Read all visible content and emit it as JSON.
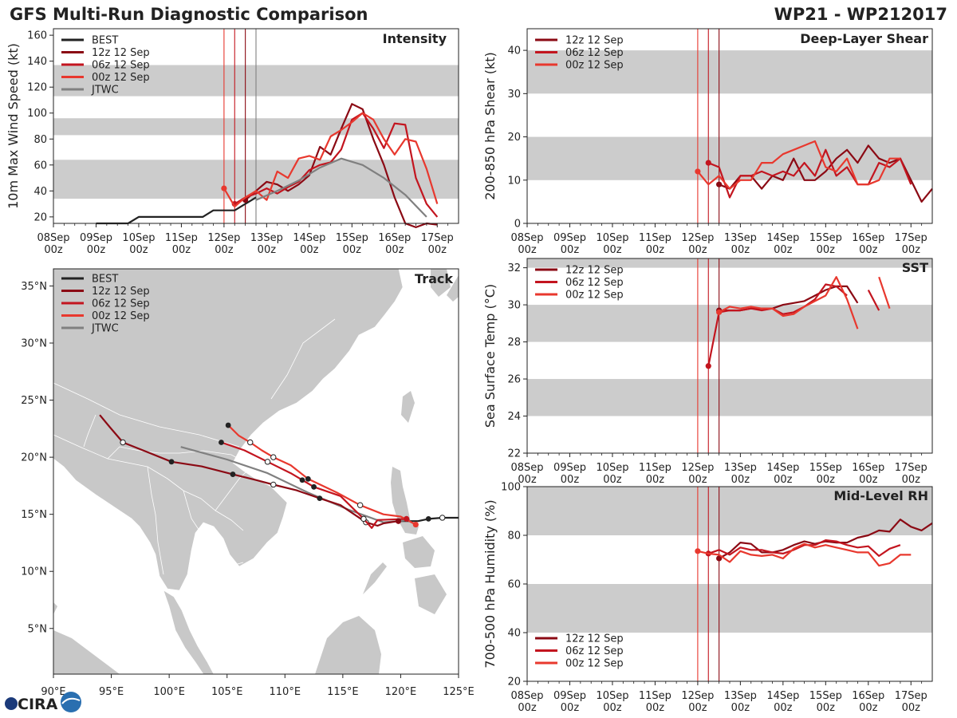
{
  "header": {
    "title": "GFS Multi-Run Diagnostic Comparison",
    "storm_id": "WP21 - WP212017"
  },
  "logo_text": "CIRA",
  "colors": {
    "best": "#222222",
    "run12": "#8b0a14",
    "run06": "#c3151f",
    "run00": "#e8382e",
    "jtwc": "#808080",
    "band": "#cccccc",
    "land": "#c8c8c8"
  },
  "time_ticks": [
    "08Sep 00z",
    "09Sep 00z",
    "10Sep 00z",
    "11Sep 00z",
    "12Sep 00z",
    "13Sep 00z",
    "14Sep 00z",
    "15Sep 00z",
    "16Sep 00z",
    "17Sep 00z"
  ],
  "chart_data": [
    {
      "id": "intensity",
      "type": "line",
      "title": "Intensity",
      "ylabel": "10m Max Wind Speed (kt)",
      "xlim": [
        0,
        228
      ],
      "ylim": [
        15,
        165
      ],
      "yticks": [
        "20",
        "40",
        "60",
        "80",
        "100",
        "120",
        "140",
        "160"
      ],
      "bands": [
        [
          34,
          64
        ],
        [
          83,
          96
        ],
        [
          113,
          137
        ]
      ],
      "vlines": [
        {
          "x": 96,
          "series": "run00"
        },
        {
          "x": 102,
          "series": "run06"
        },
        {
          "x": 108,
          "series": "run12"
        },
        {
          "x": 114,
          "series": "jtwc"
        }
      ],
      "legend": [
        "BEST",
        "12z 12 Sep",
        "06z 12 Sep",
        "00z 12 Sep",
        "JTWC"
      ],
      "legend_series": [
        "best",
        "run12",
        "run06",
        "run00",
        "jtwc"
      ],
      "legend_pos": "top-left",
      "series": [
        {
          "name": "BEST",
          "key": "best",
          "x": [
            24,
            30,
            36,
            42,
            48,
            54,
            60,
            66,
            72,
            78,
            84,
            90,
            96,
            102,
            108,
            114
          ],
          "y": [
            15,
            15,
            15,
            15,
            20,
            20,
            20,
            20,
            20,
            20,
            20,
            25,
            25,
            25,
            30,
            35
          ]
        },
        {
          "name": "12z 12 Sep",
          "key": "run12",
          "dot_first": true,
          "x": [
            108,
            114,
            120,
            126,
            132,
            138,
            144,
            150,
            156,
            162,
            168,
            174,
            180,
            186,
            192,
            198,
            204,
            210,
            216
          ],
          "y": [
            33,
            40,
            47,
            45,
            40,
            45,
            52,
            74,
            68,
            88,
            107,
            103,
            80,
            60,
            35,
            15,
            12,
            15,
            14
          ]
        },
        {
          "name": "06z 12 Sep",
          "key": "run06",
          "dot_first": true,
          "x": [
            102,
            108,
            114,
            120,
            126,
            132,
            138,
            144,
            150,
            156,
            162,
            168,
            174,
            180,
            186,
            192,
            198,
            204,
            210,
            216
          ],
          "y": [
            30,
            35,
            38,
            42,
            38,
            43,
            47,
            56,
            60,
            62,
            72,
            95,
            100,
            88,
            73,
            92,
            91,
            50,
            30,
            20
          ]
        },
        {
          "name": "00z 12 Sep",
          "key": "run00",
          "dot_first": true,
          "x": [
            96,
            102,
            108,
            114,
            120,
            126,
            132,
            138,
            144,
            150,
            156,
            162,
            168,
            174,
            180,
            186,
            192,
            198,
            204,
            210,
            216
          ],
          "y": [
            42,
            28,
            35,
            40,
            33,
            55,
            50,
            65,
            67,
            64,
            82,
            87,
            93,
            100,
            95,
            80,
            68,
            80,
            78,
            57,
            30
          ]
        },
        {
          "name": "JTWC",
          "key": "jtwc",
          "x": [
            114,
            126,
            138,
            150,
            162,
            174,
            186,
            198,
            210
          ],
          "y": [
            33,
            40,
            48,
            58,
            65,
            60,
            50,
            37,
            20
          ]
        }
      ]
    },
    {
      "id": "shear",
      "type": "line",
      "title": "Deep-Layer Shear",
      "ylabel": "200-850 hPa Shear (kt)",
      "xlim": [
        0,
        228
      ],
      "ylim": [
        0,
        45
      ],
      "yticks": [
        "0",
        "10",
        "20",
        "30",
        "40"
      ],
      "bands": [
        [
          10,
          20
        ],
        [
          30,
          40
        ]
      ],
      "vlines": [
        {
          "x": 96,
          "series": "run00"
        },
        {
          "x": 102,
          "series": "run06"
        },
        {
          "x": 108,
          "series": "run12"
        }
      ],
      "legend": [
        "12z 12 Sep",
        "06z 12 Sep",
        "00z 12 Sep"
      ],
      "legend_series": [
        "run12",
        "run06",
        "run00"
      ],
      "legend_pos": "top-left",
      "series": [
        {
          "name": "12z 12 Sep",
          "key": "run12",
          "dot_first": true,
          "x": [
            108,
            114,
            120,
            126,
            132,
            138,
            144,
            150,
            156,
            162,
            168,
            174,
            180,
            186,
            192,
            198,
            204,
            210,
            216,
            222,
            228
          ],
          "y": [
            9,
            8,
            11,
            11,
            8,
            11,
            10,
            15,
            10,
            10,
            12,
            15,
            17,
            14,
            18,
            15,
            14,
            15,
            10,
            5,
            8
          ]
        },
        {
          "name": "06z 12 Sep",
          "key": "run06",
          "dot_first": true,
          "x": [
            102,
            108,
            114,
            120,
            126,
            132,
            138,
            144,
            150,
            156,
            162,
            168,
            174,
            180,
            186,
            192,
            198,
            204,
            210,
            216
          ],
          "y": [
            14,
            13,
            6,
            11,
            11,
            12,
            11,
            12,
            11,
            14,
            11,
            17,
            11,
            13,
            9,
            9,
            14,
            13,
            15,
            9
          ]
        },
        {
          "name": "00z 12 Sep",
          "key": "run00",
          "dot_first": true,
          "x": [
            96,
            102,
            108,
            114,
            120,
            126,
            132,
            138,
            144,
            150,
            156,
            162,
            168,
            174,
            180,
            186,
            192,
            198,
            204,
            210
          ],
          "y": [
            12,
            9,
            11,
            8,
            10,
            10,
            14,
            14,
            16,
            17,
            18,
            19,
            13,
            12,
            15,
            9,
            9,
            10,
            15,
            15
          ]
        }
      ]
    },
    {
      "id": "sst",
      "type": "line",
      "title": "SST",
      "ylabel": "Sea Surface Temp (°C)",
      "xlim": [
        0,
        228
      ],
      "ylim": [
        22,
        32.5
      ],
      "yticks": [
        "22",
        "24",
        "26",
        "28",
        "30",
        "32"
      ],
      "bands": [
        [
          24,
          26
        ],
        [
          28,
          30
        ],
        [
          32,
          32.5
        ]
      ],
      "vlines": [
        {
          "x": 96,
          "series": "run00"
        },
        {
          "x": 102,
          "series": "run06"
        },
        {
          "x": 108,
          "series": "run12"
        }
      ],
      "legend": [
        "12z 12 Sep",
        "06z 12 Sep",
        "00z 12 Sep"
      ],
      "legend_series": [
        "run12",
        "run06",
        "run00"
      ],
      "legend_pos": "top-left",
      "series": [
        {
          "name": "12z 12 Sep",
          "key": "run12",
          "dot_first": true,
          "x": [
            108,
            114,
            120,
            126,
            132,
            138,
            144,
            150,
            156,
            162,
            168,
            174,
            180,
            186
          ],
          "y": [
            29.7,
            29.7,
            29.7,
            29.8,
            29.8,
            29.8,
            30,
            30.1,
            30.2,
            30.5,
            30.8,
            31,
            31,
            30.1
          ]
        },
        {
          "name": "06z 12 Sep",
          "key": "run06",
          "dot_first": true,
          "x": [
            102,
            108,
            114,
            120,
            126,
            132,
            138,
            144,
            150,
            156,
            162,
            168,
            174,
            180
          ],
          "y": [
            26.7,
            29.6,
            29.7,
            29.7,
            29.8,
            29.7,
            29.8,
            29.5,
            29.6,
            29.9,
            30.3,
            31.1,
            31,
            30.5
          ]
        },
        {
          "name": "06z tail",
          "key": "run06",
          "x": [
            192,
            198
          ],
          "y": [
            30.8,
            29.7
          ]
        },
        {
          "name": "00z 12 Sep",
          "key": "run00",
          "dot_first": true,
          "x": [
            108,
            114,
            120,
            126,
            132,
            138,
            144,
            150,
            156,
            162,
            168,
            174,
            180,
            186
          ],
          "y": [
            29.6,
            29.9,
            29.8,
            29.9,
            29.8,
            29.8,
            29.4,
            29.5,
            29.9,
            30.2,
            30.5,
            31.5,
            30.3,
            28.7
          ]
        },
        {
          "name": "00z tail",
          "key": "run00",
          "x": [
            198,
            204
          ],
          "y": [
            31.5,
            29.8
          ]
        }
      ]
    },
    {
      "id": "rh",
      "type": "line",
      "title": "Mid-Level RH",
      "ylabel": "700-500 hPa Humidity (%)",
      "xlim": [
        0,
        228
      ],
      "ylim": [
        20,
        100
      ],
      "yticks": [
        "20",
        "40",
        "60",
        "80",
        "100"
      ],
      "bands": [
        [
          40,
          60
        ],
        [
          80,
          100
        ]
      ],
      "vlines": [
        {
          "x": 96,
          "series": "run00"
        },
        {
          "x": 102,
          "series": "run06"
        },
        {
          "x": 108,
          "series": "run12"
        }
      ],
      "legend": [
        "12z 12 Sep",
        "06z 12 Sep",
        "00z 12 Sep"
      ],
      "legend_series": [
        "run12",
        "run06",
        "run00"
      ],
      "legend_pos": "bottom-left",
      "series": [
        {
          "name": "12z 12 Sep",
          "key": "run12",
          "dot_first": true,
          "x": [
            108,
            114,
            120,
            126,
            132,
            138,
            144,
            150,
            156,
            162,
            168,
            174,
            180,
            186,
            192,
            198,
            204,
            210,
            216,
            222,
            228
          ],
          "y": [
            70.5,
            73,
            77,
            76.5,
            73,
            73,
            74,
            76,
            77.5,
            76.5,
            77.5,
            77,
            77,
            79,
            80,
            82,
            81.5,
            86.5,
            83.5,
            82,
            85
          ]
        },
        {
          "name": "06z 12 Sep",
          "key": "run06",
          "dot_first": true,
          "x": [
            102,
            108,
            114,
            120,
            126,
            132,
            138,
            144,
            150,
            156,
            162,
            168,
            174,
            180,
            186,
            192,
            198,
            204,
            210
          ],
          "y": [
            72.5,
            74,
            72,
            75,
            74,
            74,
            73,
            72.5,
            74,
            76,
            76,
            78,
            77.5,
            76,
            75,
            75.5,
            71.5,
            74.5,
            76
          ]
        },
        {
          "name": "00z 12 Sep",
          "key": "run00",
          "dot_first": true,
          "x": [
            96,
            102,
            108,
            114,
            120,
            126,
            132,
            138,
            144,
            150,
            156,
            162,
            168,
            174,
            180,
            186,
            192,
            198,
            204,
            210,
            216
          ],
          "y": [
            73.5,
            72.5,
            72,
            69,
            73.5,
            72,
            71.5,
            72,
            70.5,
            74.5,
            76.5,
            75,
            76,
            75,
            74,
            73,
            73,
            67.5,
            68.5,
            72,
            72
          ]
        }
      ]
    },
    {
      "id": "track",
      "type": "scatter",
      "title": "Track",
      "xlim": [
        90,
        125
      ],
      "ylim": [
        1,
        36.5
      ],
      "xticks": [
        "90°E",
        "95°E",
        "100°E",
        "105°E",
        "110°E",
        "115°E",
        "120°E",
        "125°E"
      ],
      "yticks": [
        "5°N",
        "10°N",
        "15°N",
        "20°N",
        "25°N",
        "30°N",
        "35°N"
      ],
      "legend": [
        "BEST",
        "12z 12 Sep",
        "06z 12 Sep",
        "00z 12 Sep",
        "JTWC"
      ],
      "legend_series": [
        "best",
        "run12",
        "run06",
        "run00",
        "jtwc"
      ],
      "legend_pos": "top-left",
      "series": [
        {
          "name": "BEST",
          "key": "best",
          "lon": [
            125,
            123.6,
            122.4,
            121.5,
            120.6,
            119.8
          ],
          "lat": [
            14.7,
            14.7,
            14.6,
            14.4,
            14.4,
            14.4
          ],
          "open": [
            1
          ],
          "filled": [
            2
          ]
        },
        {
          "name": "JTWC",
          "key": "jtwc",
          "lon": [
            120.8,
            118.5,
            115.5,
            112,
            108.5,
            105,
            101
          ],
          "lat": [
            14.5,
            14.3,
            15.4,
            16.9,
            18.6,
            19.8,
            20.9
          ],
          "open": [],
          "filled": []
        },
        {
          "name": "12z 12 Sep",
          "key": "run12",
          "lon": [
            119.8,
            118.5,
            118.0,
            117.0,
            114.8,
            113.0,
            111.0,
            109.0,
            107.5,
            105.5,
            102.8,
            100.2,
            98.0,
            96.0,
            94.9,
            94.0
          ],
          "lat": [
            14.4,
            14.2,
            14.0,
            14.3,
            15.8,
            16.4,
            17.1,
            17.6,
            18.0,
            18.5,
            19.2,
            19.6,
            20.5,
            21.3,
            22.6,
            23.7
          ],
          "open": [
            3,
            7,
            13
          ],
          "filled": [
            5,
            9,
            11
          ]
        },
        {
          "name": "06z 12 Sep",
          "key": "run06",
          "lon": [
            120.5,
            118.0,
            117.5,
            116.8,
            114.8,
            112.5,
            111.5,
            110.5,
            108.5,
            106.5,
            104.5
          ],
          "lat": [
            14.6,
            14.5,
            13.8,
            14.6,
            16.6,
            17.4,
            18.0,
            18.6,
            19.6,
            20.6,
            21.3
          ],
          "open": [
            3,
            8
          ],
          "filled": [
            5,
            6,
            10
          ]
        },
        {
          "name": "00z 12 Sep",
          "key": "run00",
          "lon": [
            121.3,
            120.0,
            118.5,
            116.5,
            114.5,
            112.0,
            110.5,
            109.0,
            108.0,
            107.0,
            106.0,
            105.1
          ],
          "lat": [
            14.1,
            14.8,
            15.0,
            15.8,
            16.9,
            18.1,
            19.3,
            20.0,
            20.6,
            21.3,
            21.9,
            22.8
          ],
          "open": [
            3,
            7,
            9
          ],
          "filled": [
            5,
            11
          ]
        }
      ]
    }
  ]
}
